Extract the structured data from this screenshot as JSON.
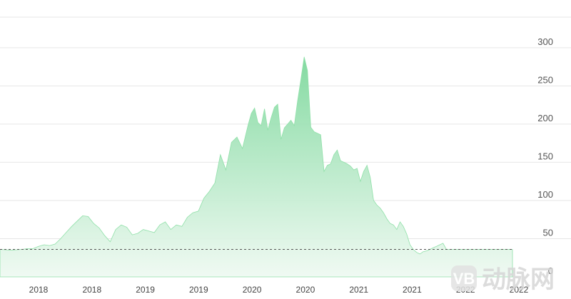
{
  "chart_data": {
    "type": "area",
    "title": "",
    "xlabel": "",
    "ylabel": "",
    "ylim": [
      0,
      340
    ],
    "y_ticks": [
      0,
      50,
      100,
      150,
      200,
      250,
      300
    ],
    "y_tick_labels": [
      "0",
      "50",
      "100",
      "150",
      "200",
      "250",
      "300"
    ],
    "x_tick_labels": [
      "2018",
      "2018",
      "2019",
      "2019",
      "2020",
      "2020",
      "2021",
      "2021",
      "2022",
      "2022"
    ],
    "x_range": [
      2017.75,
      2022.4
    ],
    "reference_line": 36,
    "grid": true,
    "legend": "none",
    "colors": {
      "area_top": "#7dd89c",
      "area_bottom": "#eef9f1",
      "grid": "#e6e6e6",
      "reference": "#555555"
    },
    "series": [
      {
        "x": [
          2017.75,
          2017.85,
          2017.95,
          2018.0,
          2018.05,
          2018.1,
          2018.15,
          2018.2,
          2018.25,
          2018.3,
          2018.35,
          2018.4,
          2018.45,
          2018.5,
          2018.55,
          2018.6,
          2018.65,
          2018.7,
          2018.75,
          2018.8,
          2018.85,
          2018.9,
          2018.95,
          2019.0,
          2019.05,
          2019.1,
          2019.15,
          2019.2,
          2019.25,
          2019.3,
          2019.35,
          2019.4,
          2019.45,
          2019.5,
          2019.55,
          2019.6,
          2019.65,
          2019.7,
          2019.75,
          2019.8,
          2019.85,
          2019.9,
          2019.95,
          2020.0,
          2020.03,
          2020.06,
          2020.09,
          2020.12,
          2020.15,
          2020.18,
          2020.21,
          2020.24,
          2020.27,
          2020.3,
          2020.33,
          2020.36,
          2020.39,
          2020.42,
          2020.45,
          2020.48,
          2020.51,
          2020.54,
          2020.57,
          2020.6,
          2020.63,
          2020.66,
          2020.69,
          2020.72,
          2020.75,
          2020.78,
          2020.81,
          2020.84,
          2020.87,
          2020.9,
          2020.93,
          2020.96,
          2020.99,
          2021.02,
          2021.05,
          2021.08,
          2021.11,
          2021.14,
          2021.17,
          2021.2,
          2021.23,
          2021.26,
          2021.29,
          2021.32,
          2021.35,
          2021.38,
          2021.41,
          2021.44,
          2021.47,
          2021.5,
          2021.53,
          2021.56,
          2021.59,
          2021.62,
          2021.65,
          2021.68,
          2021.71,
          2021.74,
          2021.77,
          2021.8,
          2021.83,
          2021.86,
          2021.89,
          2021.92,
          2021.95,
          2021.98,
          2022.01,
          2022.04,
          2022.07,
          2022.1,
          2022.13,
          2022.16,
          2022.19,
          2022.22,
          2022.25,
          2022.28,
          2022.31,
          2022.34,
          2022.37,
          2022.4
        ],
        "values": [
          36,
          35,
          36,
          37,
          37,
          40,
          42,
          41,
          43,
          50,
          58,
          66,
          73,
          80,
          79,
          70,
          64,
          54,
          46,
          62,
          68,
          65,
          55,
          57,
          62,
          60,
          58,
          68,
          72,
          62,
          68,
          66,
          78,
          84,
          86,
          103,
          112,
          123,
          160,
          140,
          176,
          183,
          168,
          198,
          214,
          221,
          202,
          198,
          220,
          192,
          208,
          222,
          226,
          180,
          195,
          200,
          205,
          198,
          230,
          258,
          288,
          270,
          196,
          190,
          188,
          186,
          138,
          146,
          148,
          160,
          166,
          152,
          150,
          148,
          145,
          140,
          142,
          125,
          138,
          146,
          130,
          100,
          94,
          90,
          84,
          76,
          70,
          68,
          62,
          72,
          66,
          56,
          42,
          36,
          32,
          30,
          33,
          34,
          36,
          38,
          40,
          42,
          44,
          36,
          36,
          36,
          36,
          36,
          36,
          36,
          36,
          36,
          36,
          36,
          36,
          36,
          36,
          36,
          36,
          36,
          36,
          36,
          36,
          36
        ]
      }
    ]
  },
  "watermark": {
    "badge_text": "VB",
    "text": "动脉网"
  }
}
